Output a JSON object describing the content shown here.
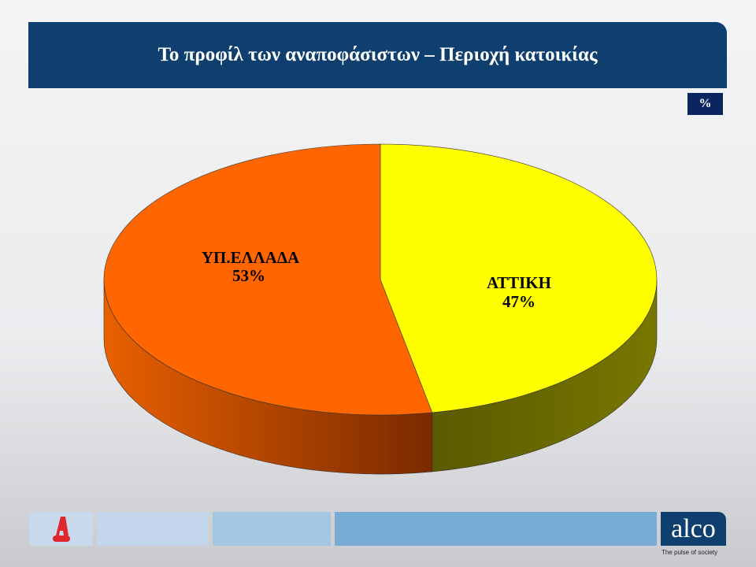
{
  "header": {
    "title": "Το προφίλ των αναποφάσιστων – Περιοχή κατοικίας",
    "unit_badge": "%"
  },
  "chart_data": {
    "type": "pie",
    "style": "3d",
    "start": "top, clockwise",
    "slices": [
      {
        "label": "ΑΤΤΙΚΗ",
        "value": 47,
        "display": "47%",
        "color": "#ffff00",
        "side_color": "#6b6b00"
      },
      {
        "label": "ΥΠ.ΕΛΛΑΔΑ",
        "value": 53,
        "display": "53%",
        "color": "#ff6600",
        "side_color": "#c44f00"
      }
    ]
  },
  "footer": {
    "news_logo": "A NEWS",
    "brand_logo": "alco",
    "tagline": "The pulse of society"
  }
}
